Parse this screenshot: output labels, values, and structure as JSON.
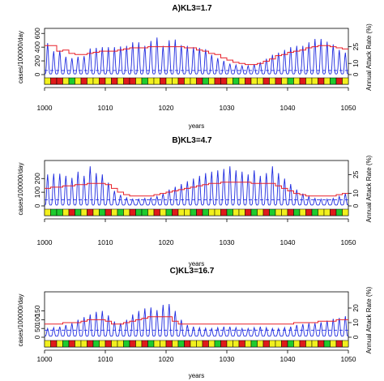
{
  "colors": {
    "cases_line": "#1f2be0",
    "attack_rate_line": "#e8202a",
    "dashed_level": "#1f2be0",
    "strip_red": "#e01a1a",
    "strip_yellow": "#f2f01e",
    "strip_green": "#1ecb2e"
  },
  "chart_data": [
    {
      "type": "line",
      "title": "A)KL3=1.7",
      "xlabel": "years",
      "ylabel": "cases/100000/day",
      "ylabel_right": "Annual Attack Rate (%)",
      "xlim": [
        1000,
        1050
      ],
      "ylim": [
        0,
        650
      ],
      "ylim_right": [
        0,
        40
      ],
      "x_ticks": [
        "1000",
        "1010",
        "1020",
        "1030",
        "1040",
        "1050"
      ],
      "y_ticks": [
        "0",
        "200",
        "400",
        "600"
      ],
      "y_ticks_right": [
        "0",
        "10",
        "25"
      ],
      "dashed_level": 60,
      "series": [
        {
          "role": "cases",
          "peaks": [
            460,
            340,
            350,
            260,
            240,
            260,
            270,
            380,
            390,
            400,
            400,
            400,
            410,
            420,
            470,
            470,
            420,
            490,
            540,
            420,
            500,
            510,
            430,
            420,
            400,
            390,
            370,
            290,
            240,
            200,
            160,
            140,
            130,
            130,
            150,
            180,
            230,
            290,
            320,
            360,
            400,
            420,
            420,
            470,
            520,
            520,
            480,
            440,
            360,
            320
          ]
        },
        {
          "role": "attack_rate",
          "values": [
            26,
            26,
            21,
            22,
            19,
            18,
            18,
            19,
            20,
            21,
            21,
            21,
            22,
            23,
            24,
            24,
            24,
            25,
            25,
            25,
            25,
            25,
            25,
            24,
            24,
            22,
            21,
            19,
            18,
            15,
            13,
            11,
            10,
            9,
            9,
            10,
            12,
            14,
            17,
            18,
            20,
            21,
            22,
            24,
            25,
            26,
            26,
            25,
            24,
            23
          ]
        }
      ],
      "strip": [
        "y",
        "r",
        "r",
        "y",
        "g",
        "y",
        "r",
        "y",
        "y",
        "r",
        "y",
        "r",
        "y",
        "r",
        "r",
        "y",
        "g",
        "y",
        "y",
        "r",
        "y",
        "y",
        "r",
        "y",
        "y",
        "r",
        "g",
        "y",
        "r",
        "r",
        "y",
        "g",
        "y",
        "r",
        "y",
        "y",
        "r",
        "y",
        "r",
        "y",
        "g",
        "y",
        "r",
        "y",
        "y",
        "r",
        "y",
        "g",
        "r",
        "y"
      ]
    },
    {
      "type": "line",
      "title": "B)KL3=4.7",
      "xlabel": "years",
      "ylabel": "cases/100000/day",
      "ylabel_right": "Annual Attack Rate (%)",
      "xlim": [
        1000,
        1050
      ],
      "ylim": [
        0,
        320
      ],
      "ylim_right": [
        0,
        35
      ],
      "x_ticks": [
        "1000",
        "1010",
        "1020",
        "1030",
        "1040",
        "1050"
      ],
      "y_ticks": [
        "0",
        "100",
        "200"
      ],
      "y_ticks_right": [
        "0",
        "10",
        "25"
      ],
      "dashed_level": 45,
      "series": [
        {
          "role": "cases",
          "peaks": [
            230,
            235,
            235,
            220,
            205,
            250,
            220,
            290,
            240,
            230,
            170,
            110,
            80,
            60,
            50,
            50,
            55,
            60,
            70,
            90,
            120,
            140,
            160,
            180,
            200,
            220,
            240,
            250,
            260,
            270,
            290,
            260,
            250,
            230,
            260,
            220,
            240,
            290,
            240,
            200,
            160,
            120,
            90,
            70,
            55,
            50,
            50,
            55,
            70,
            90
          ]
        },
        {
          "role": "attack_rate",
          "values": [
            14,
            15,
            15,
            16,
            16,
            17,
            17,
            18,
            18,
            18,
            17,
            14,
            11,
            9,
            8,
            8,
            8,
            8,
            9,
            10,
            11,
            12,
            13,
            14,
            15,
            16,
            17,
            18,
            18,
            19,
            19,
            19,
            19,
            19,
            18,
            18,
            18,
            18,
            16,
            14,
            12,
            10,
            9,
            8,
            8,
            8,
            8,
            8,
            9,
            10
          ]
        }
      ],
      "strip": [
        "y",
        "g",
        "g",
        "y",
        "r",
        "g",
        "y",
        "r",
        "y",
        "g",
        "r",
        "y",
        "g",
        "y",
        "r",
        "g",
        "g",
        "y",
        "r",
        "y",
        "g",
        "r",
        "y",
        "y",
        "g",
        "r",
        "g",
        "y",
        "y",
        "r",
        "g",
        "y",
        "y",
        "r",
        "g",
        "y",
        "r",
        "g",
        "y",
        "y",
        "r",
        "g",
        "y",
        "r",
        "g",
        "y",
        "y",
        "r",
        "g",
        "y"
      ]
    },
    {
      "type": "line",
      "title": "C)KL3=16.7",
      "xlabel": "years",
      "ylabel": "cases/100000/day",
      "ylabel_right": "Annual Attack Rate (%)",
      "xlim": [
        1000,
        1050
      ],
      "ylim": [
        0,
        250
      ],
      "ylim_right": [
        0,
        30
      ],
      "x_ticks": [
        "1000",
        "1010",
        "1020",
        "1030",
        "1040",
        "1050"
      ],
      "y_ticks": [
        "0",
        "50",
        "100",
        "150"
      ],
      "y_ticks_right": [
        "0",
        "10",
        "20"
      ],
      "dashed_level": 40,
      "series": [
        {
          "role": "cases",
          "peaks": [
            50,
            55,
            60,
            70,
            80,
            100,
            115,
            130,
            145,
            150,
            125,
            90,
            80,
            100,
            130,
            150,
            165,
            170,
            155,
            185,
            190,
            150,
            100,
            70,
            60,
            55,
            52,
            50,
            55,
            60,
            60,
            55,
            50,
            50,
            55,
            60,
            55,
            50,
            50,
            55,
            60,
            70,
            75,
            80,
            80,
            85,
            95,
            105,
            110,
            120
          ]
        },
        {
          "role": "attack_rate",
          "values": [
            9,
            9,
            9,
            10,
            10,
            10,
            11,
            12,
            12,
            12,
            11,
            9,
            9,
            10,
            11,
            12,
            13,
            14,
            14,
            14,
            14,
            11,
            9,
            9,
            9,
            9,
            9,
            9,
            9,
            9,
            9,
            9,
            9,
            9,
            9,
            9,
            9,
            9,
            9,
            9,
            9,
            10,
            10,
            10,
            10,
            11,
            11,
            11,
            12,
            12
          ]
        }
      ],
      "strip": [
        "y",
        "r",
        "y",
        "g",
        "r",
        "y",
        "y",
        "r",
        "g",
        "y",
        "r",
        "y",
        "y",
        "g",
        "r",
        "y",
        "r",
        "g",
        "y",
        "y",
        "r",
        "y",
        "g",
        "r",
        "y",
        "y",
        "r",
        "y",
        "g",
        "r",
        "y",
        "y",
        "r",
        "y",
        "g",
        "y",
        "r",
        "y",
        "y",
        "r",
        "g",
        "y",
        "r",
        "y",
        "y",
        "r",
        "g",
        "y",
        "r",
        "y"
      ]
    }
  ]
}
